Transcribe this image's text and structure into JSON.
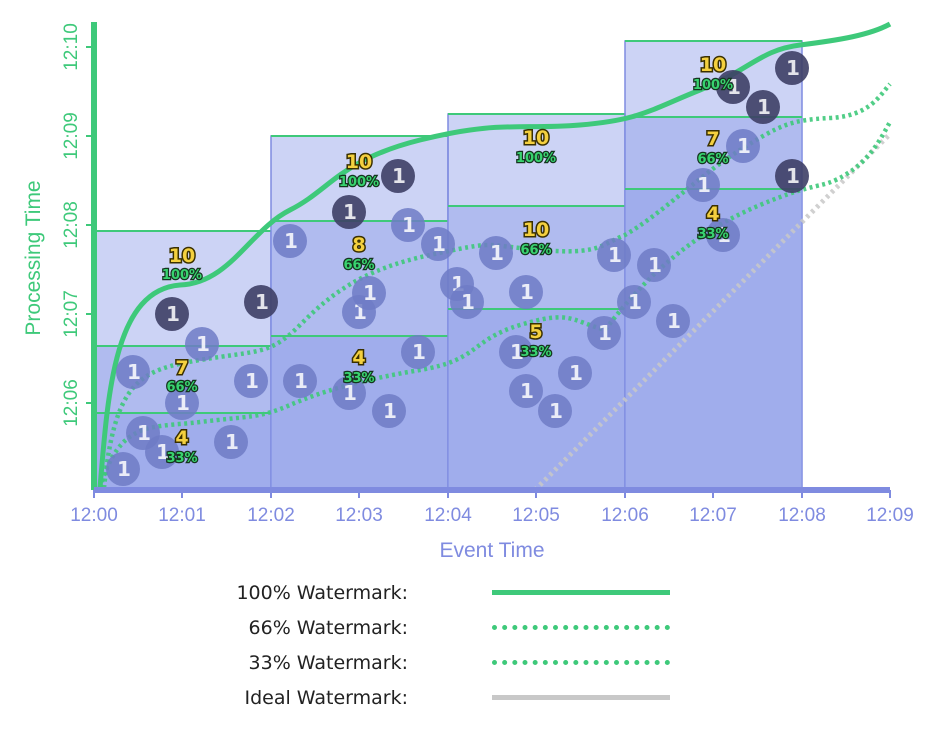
{
  "axes": {
    "x_title": "Event Time",
    "y_title": "Processing Time",
    "x_ticks": [
      "12:00",
      "12:01",
      "12:02",
      "12:03",
      "12:04",
      "12:05",
      "12:06",
      "12:07",
      "12:08",
      "12:09"
    ],
    "y_ticks": [
      "12:06",
      "12:07",
      "12:08",
      "12:09",
      "12:10"
    ]
  },
  "colors": {
    "axis_x": "#7f8be0",
    "axis_y": "#3ec97a",
    "watermark": "#3ec97a",
    "ideal": "#c8c8c8",
    "pane_fill": "#8f9de9",
    "event_light": "#6f7bc6",
    "event_dark": "#3e3f66"
  },
  "windows": [
    {
      "x": [
        "12:00",
        "12:02"
      ],
      "tiers": [
        {
          "count": "10",
          "pct": "100%",
          "top": "12:07:54"
        },
        {
          "count": "7",
          "pct": "66%",
          "top": "12:06:39"
        },
        {
          "count": "4",
          "pct": "33%",
          "top": "12:05:53"
        }
      ]
    },
    {
      "x": [
        "12:02",
        "12:04"
      ],
      "tiers": [
        {
          "count": "10",
          "pct": "100%",
          "top": "12:09:00"
        },
        {
          "count": "8",
          "pct": "66%",
          "top": "12:08:03"
        },
        {
          "count": "4",
          "pct": "33%",
          "top": "12:06:45"
        }
      ]
    },
    {
      "x": [
        "12:04",
        "12:06"
      ],
      "tiers": [
        {
          "count": "10",
          "pct": "100%",
          "top": "12:09:15"
        },
        {
          "count": "10",
          "pct": "66%",
          "top": "12:08:13"
        },
        {
          "count": "5",
          "pct": "33%",
          "top": "12:07:04"
        }
      ]
    },
    {
      "x": [
        "12:06",
        "12:08"
      ],
      "tiers": [
        {
          "count": "10",
          "pct": "100%",
          "top": "12:10:00"
        },
        {
          "count": "7",
          "pct": "66%",
          "top": "12:09:14"
        },
        {
          "count": "4",
          "pct": "33%",
          "top": "12:08:24"
        }
      ]
    }
  ],
  "event_marker": "1",
  "legend": [
    {
      "label": "100% Watermark:",
      "style": "solid"
    },
    {
      "label": "66% Watermark:",
      "style": "dotted"
    },
    {
      "label": "33% Watermark:",
      "style": "dotted"
    },
    {
      "label": "Ideal Watermark:",
      "style": "solid-gray"
    }
  ]
}
